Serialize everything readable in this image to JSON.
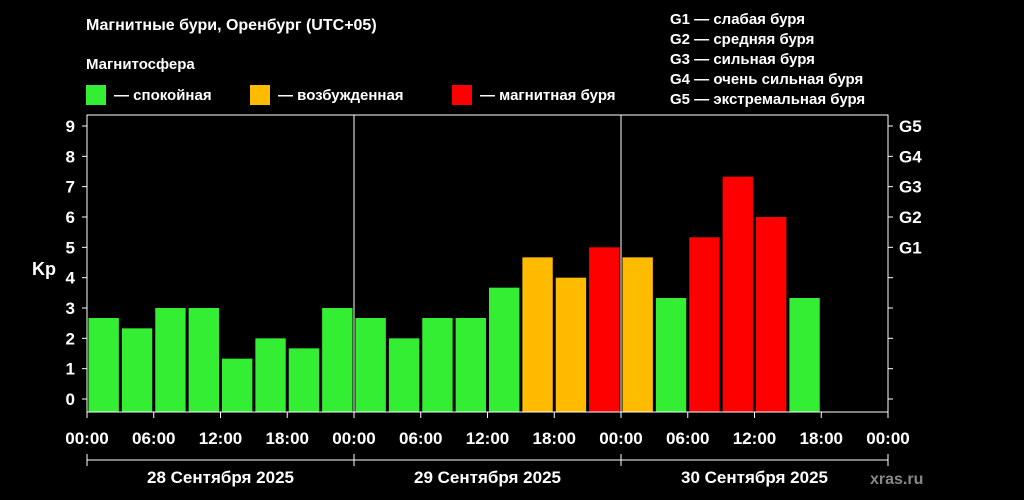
{
  "header": {
    "title": "Магнитные бури, Оренбург (UTC+05)",
    "legend_title": "Магнитосфера"
  },
  "legend": [
    {
      "label": "— спокойная",
      "color": "#33ee33"
    },
    {
      "label": "— возбужденная",
      "color": "#ffbb00"
    },
    {
      "label": "— магнитная буря",
      "color": "#ff0000"
    }
  ],
  "g_scale_info": [
    "G1 — слабая буря",
    "G2 — средняя буря",
    "G3 — сильная буря",
    "G4 — очень сильная буря",
    "G5 — экстремальная буря"
  ],
  "watermark": "xras.ru",
  "chart_data": {
    "type": "bar",
    "ylabel": "Kp",
    "ylim": [
      0,
      9
    ],
    "y_ticks": [
      "0",
      "1",
      "2",
      "3",
      "4",
      "5",
      "6",
      "7",
      "8",
      "9"
    ],
    "y2_ticks": [
      {
        "label": "G1",
        "value": 5
      },
      {
        "label": "G2",
        "value": 6
      },
      {
        "label": "G3",
        "value": 7
      },
      {
        "label": "G4",
        "value": 8
      },
      {
        "label": "G5",
        "value": 9
      }
    ],
    "x_tick_labels": [
      "00:00",
      "06:00",
      "12:00",
      "18:00",
      "00:00",
      "06:00",
      "12:00",
      "18:00",
      "00:00",
      "06:00",
      "12:00",
      "18:00",
      "00:00"
    ],
    "days": [
      "28 Сентября 2025",
      "29 Сентября 2025",
      "30 Сентября 2025"
    ],
    "interval_hours": 3,
    "values": [
      2.67,
      2.33,
      3.0,
      3.0,
      1.33,
      2.0,
      1.67,
      3.0,
      2.67,
      2.0,
      2.67,
      2.67,
      3.67,
      4.67,
      4.0,
      5.0,
      4.67,
      3.33,
      5.33,
      7.33,
      6.0,
      3.33
    ],
    "levels": [
      "quiet",
      "quiet",
      "quiet",
      "quiet",
      "quiet",
      "quiet",
      "quiet",
      "quiet",
      "quiet",
      "quiet",
      "quiet",
      "quiet",
      "quiet",
      "active",
      "active",
      "storm",
      "active",
      "quiet",
      "storm",
      "storm",
      "storm",
      "quiet"
    ],
    "colors": {
      "quiet": "#33ee33",
      "active": "#ffbb00",
      "storm": "#ff0000"
    },
    "grid": false
  }
}
